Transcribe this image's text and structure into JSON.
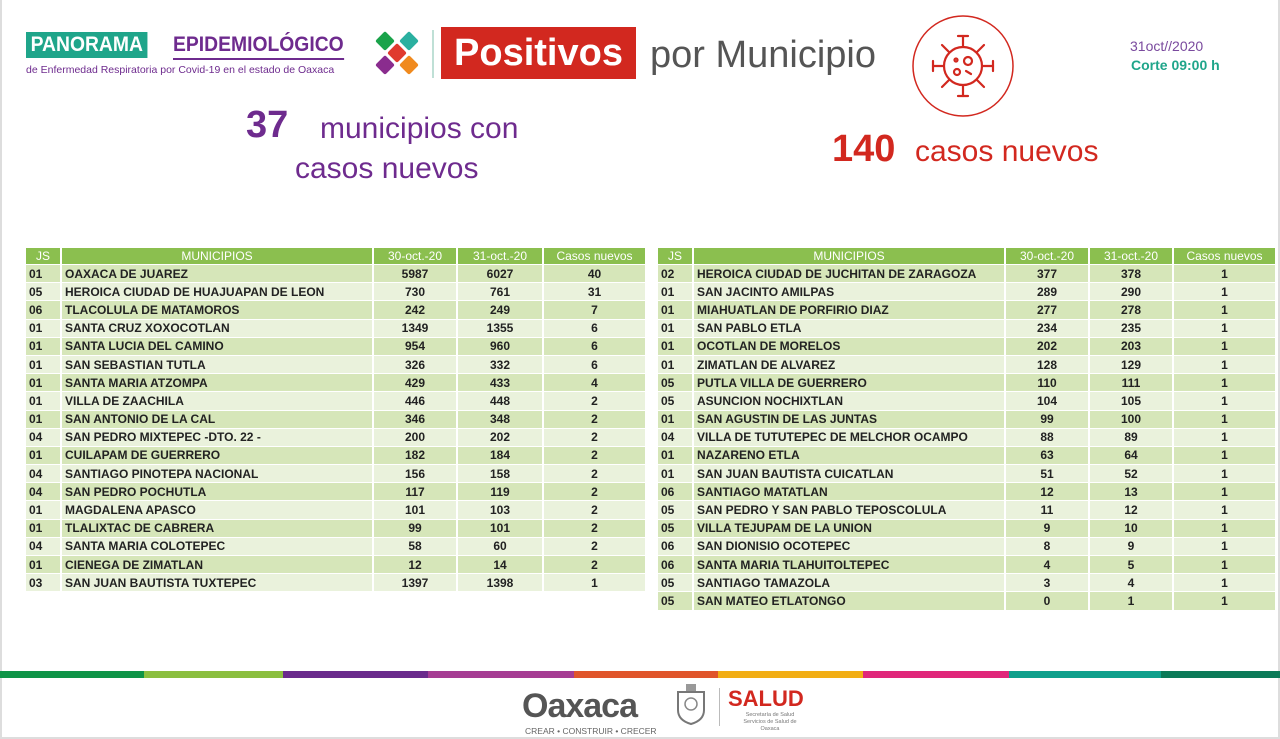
{
  "header": {
    "brand_panorama": "PANORAMA",
    "brand_epidemiologico": "EPIDEMIOLÓGICO",
    "brand_subtitle": "de Enfermedad Respiratoria por Covid-19 en el estado de Oaxaca",
    "title_highlight": "Positivos",
    "title_rest": "por Municipio",
    "date": "31oct//2020",
    "cutoff": "Corte 09:00 h",
    "icon": "virus-icon"
  },
  "summary": {
    "municipios_count": "37",
    "municipios_text_1": "municipios con",
    "municipios_text_2": "casos nuevos",
    "cases_count": "140",
    "cases_text": "casos nuevos"
  },
  "colors": {
    "teal": "#1fa58a",
    "purple": "#6e2b8e",
    "red": "#d2281f",
    "header_green": "#8bbf4f"
  },
  "columns": [
    "JS",
    "MUNICIPIOS",
    "30-oct.-20",
    "31-oct.-20",
    "Casos nuevos"
  ],
  "table_left": [
    [
      "01",
      "OAXACA DE JUAREZ",
      "5987",
      "6027",
      "40"
    ],
    [
      "05",
      "HEROICA CIUDAD DE HUAJUAPAN DE LEON",
      "730",
      "761",
      "31"
    ],
    [
      "06",
      "TLACOLULA DE MATAMOROS",
      "242",
      "249",
      "7"
    ],
    [
      "01",
      "SANTA CRUZ XOXOCOTLAN",
      "1349",
      "1355",
      "6"
    ],
    [
      "01",
      "SANTA LUCIA DEL CAMINO",
      "954",
      "960",
      "6"
    ],
    [
      "01",
      "SAN SEBASTIAN TUTLA",
      "326",
      "332",
      "6"
    ],
    [
      "01",
      "SANTA MARIA ATZOMPA",
      "429",
      "433",
      "4"
    ],
    [
      "01",
      "VILLA DE ZAACHILA",
      "446",
      "448",
      "2"
    ],
    [
      "01",
      "SAN ANTONIO DE LA CAL",
      "346",
      "348",
      "2"
    ],
    [
      "04",
      "SAN PEDRO MIXTEPEC -DTO. 22 -",
      "200",
      "202",
      "2"
    ],
    [
      "01",
      "CUILAPAM DE GUERRERO",
      "182",
      "184",
      "2"
    ],
    [
      "04",
      "SANTIAGO PINOTEPA NACIONAL",
      "156",
      "158",
      "2"
    ],
    [
      "04",
      "SAN PEDRO POCHUTLA",
      "117",
      "119",
      "2"
    ],
    [
      "01",
      "MAGDALENA APASCO",
      "101",
      "103",
      "2"
    ],
    [
      "01",
      "TLALIXTAC DE CABRERA",
      "99",
      "101",
      "2"
    ],
    [
      "04",
      "SANTA MARIA COLOTEPEC",
      "58",
      "60",
      "2"
    ],
    [
      "01",
      "CIENEGA DE ZIMATLAN",
      "12",
      "14",
      "2"
    ],
    [
      "03",
      "SAN JUAN BAUTISTA TUXTEPEC",
      "1397",
      "1398",
      "1"
    ]
  ],
  "table_right": [
    [
      "02",
      "HEROICA CIUDAD DE JUCHITAN DE ZARAGOZA",
      "377",
      "378",
      "1"
    ],
    [
      "01",
      "SAN JACINTO AMILPAS",
      "289",
      "290",
      "1"
    ],
    [
      "01",
      "MIAHUATLAN DE PORFIRIO DIAZ",
      "277",
      "278",
      "1"
    ],
    [
      "01",
      "SAN PABLO ETLA",
      "234",
      "235",
      "1"
    ],
    [
      "01",
      "OCOTLAN DE MORELOS",
      "202",
      "203",
      "1"
    ],
    [
      "01",
      "ZIMATLAN DE ALVAREZ",
      "128",
      "129",
      "1"
    ],
    [
      "05",
      "PUTLA VILLA DE GUERRERO",
      "110",
      "111",
      "1"
    ],
    [
      "05",
      "ASUNCION NOCHIXTLAN",
      "104",
      "105",
      "1"
    ],
    [
      "01",
      "SAN AGUSTIN DE LAS JUNTAS",
      "99",
      "100",
      "1"
    ],
    [
      "04",
      "VILLA DE TUTUTEPEC DE MELCHOR OCAMPO",
      "88",
      "89",
      "1"
    ],
    [
      "01",
      "NAZARENO ETLA",
      "63",
      "64",
      "1"
    ],
    [
      "01",
      "SAN JUAN BAUTISTA CUICATLAN",
      "51",
      "52",
      "1"
    ],
    [
      "06",
      "SANTIAGO MATATLAN",
      "12",
      "13",
      "1"
    ],
    [
      "05",
      "SAN PEDRO Y SAN PABLO TEPOSCOLULA",
      "11",
      "12",
      "1"
    ],
    [
      "05",
      "VILLA TEJUPAM DE LA UNION",
      "9",
      "10",
      "1"
    ],
    [
      "06",
      "SAN DIONISIO OCOTEPEC",
      "8",
      "9",
      "1"
    ],
    [
      "06",
      "SANTA MARIA TLAHUITOLTEPEC",
      "4",
      "5",
      "1"
    ],
    [
      "05",
      "SANTIAGO TAMAZOLA",
      "3",
      "4",
      "1"
    ],
    [
      "05",
      "SAN MATEO ETLATONGO",
      "0",
      "1",
      "1"
    ]
  ],
  "color_bar": [
    "#0e9447",
    "#8bbf3f",
    "#6a2a8c",
    "#a63c93",
    "#e0552b",
    "#f2ae14",
    "#e0277a",
    "#0fa08c",
    "#0b7a58"
  ],
  "footer": {
    "oaxaca_logo": "Oaxaca",
    "oaxaca_slogan": "CREAR • CONSTRUIR • CRECER",
    "salud_logo": "SALUD",
    "salud_sub": "Secretaría de Salud Servicios de Salud de Oaxaca"
  }
}
